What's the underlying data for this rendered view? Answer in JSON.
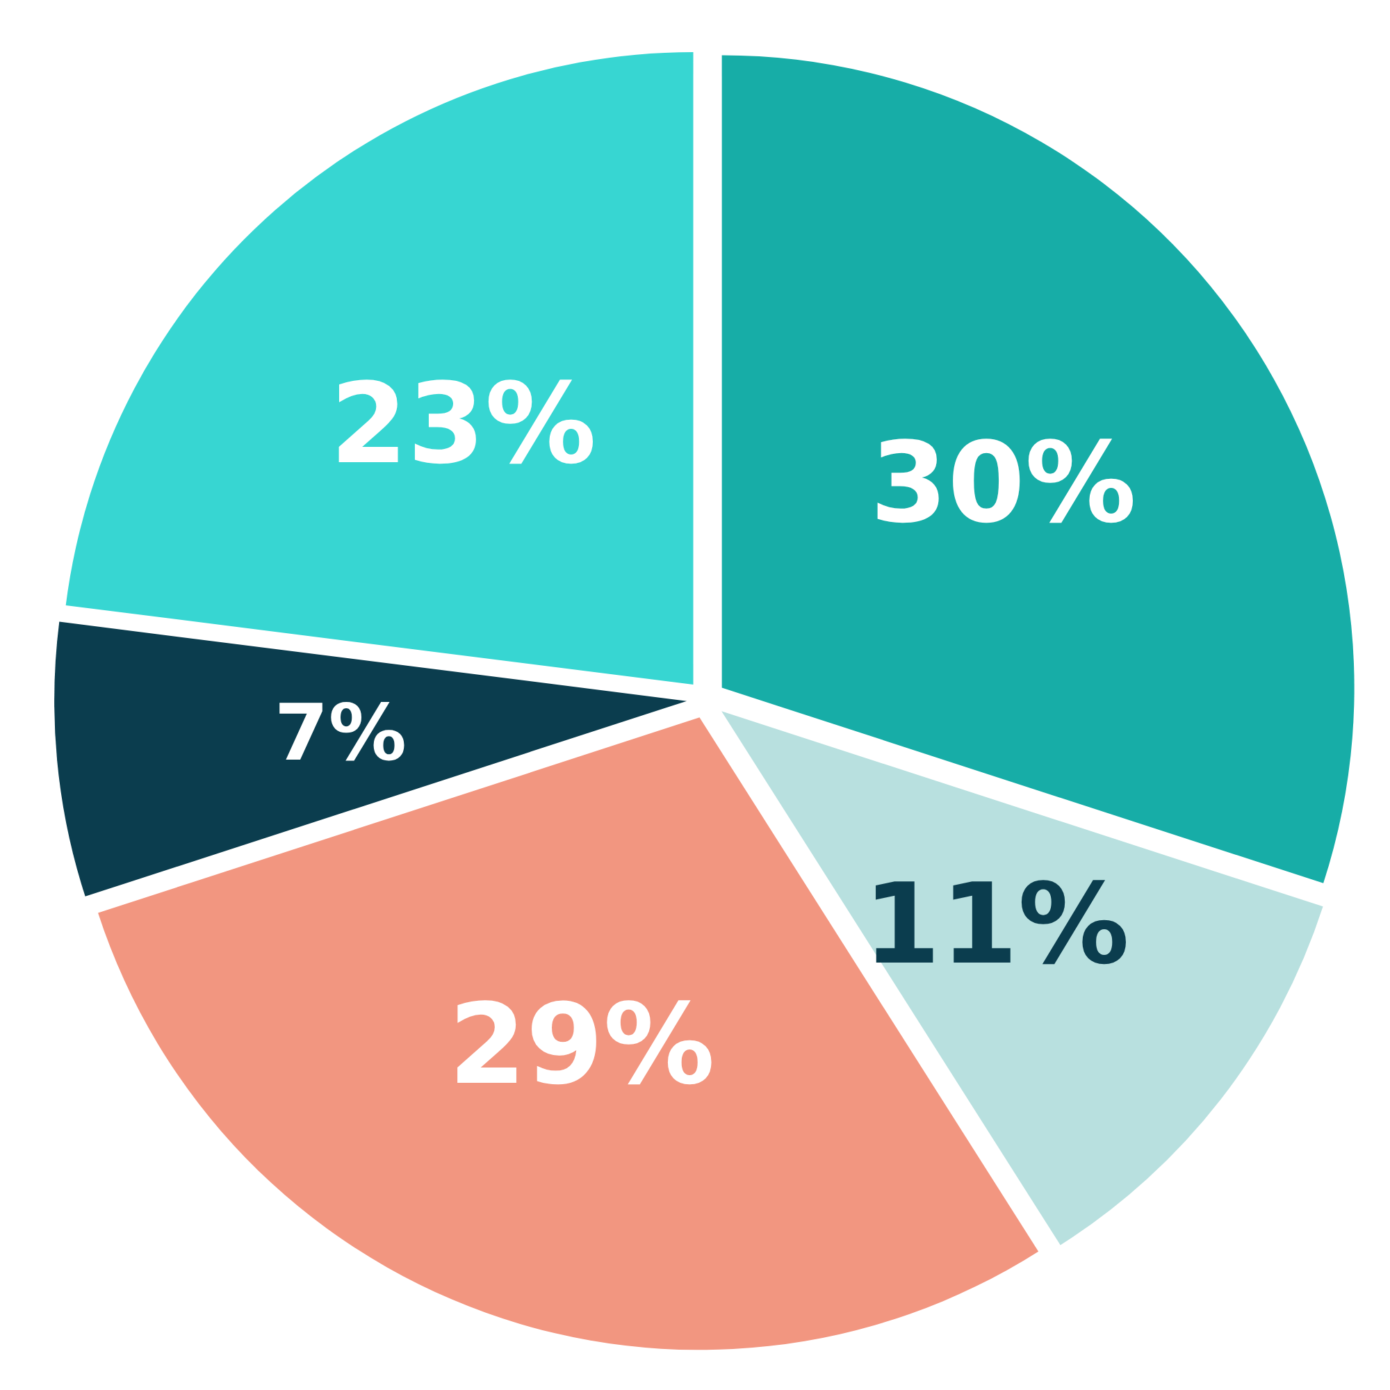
{
  "chart_data": {
    "type": "pie",
    "categories": [
      null,
      null,
      null,
      null,
      null
    ],
    "values": [
      30,
      11,
      29,
      7,
      23
    ],
    "colors": [
      "#17ada7",
      "#b8e0df",
      "#f29680",
      "#0b3d4e",
      "#37d6d2"
    ],
    "value_labels": [
      "30%",
      "11%",
      "29%",
      "7%",
      "23%"
    ]
  }
}
